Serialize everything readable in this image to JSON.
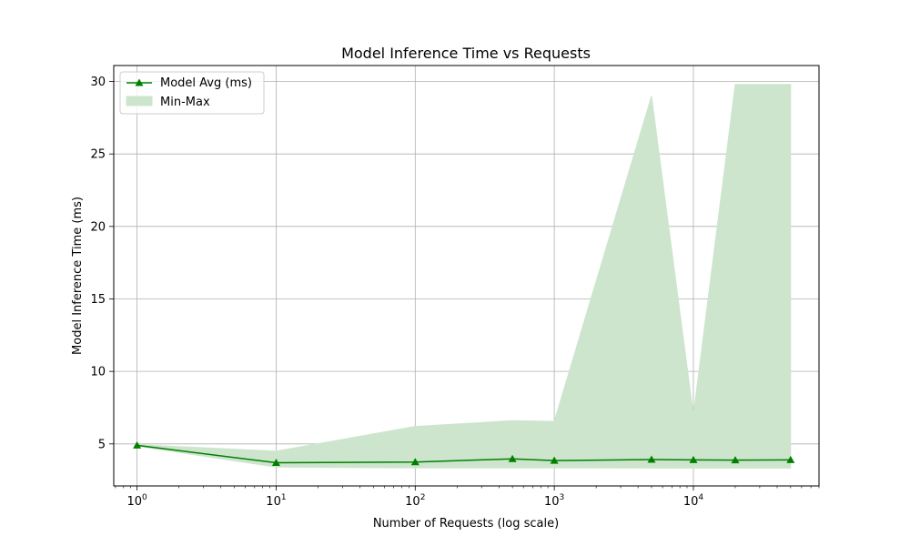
{
  "chart_data": {
    "type": "line",
    "title": "Model Inference Time vs Requests",
    "xlabel": "Number of Requests (log scale)",
    "ylabel": "Model Inference Time (ms)",
    "x_scale": "log",
    "xlim": [
      0.68,
      80000
    ],
    "ylim": [
      2.1,
      31.1
    ],
    "grid": true,
    "legend_position": "upper-left",
    "x_ticks": [
      {
        "value": 1,
        "base": "10",
        "exp": "0"
      },
      {
        "value": 10,
        "base": "10",
        "exp": "1"
      },
      {
        "value": 100,
        "base": "10",
        "exp": "2"
      },
      {
        "value": 1000,
        "base": "10",
        "exp": "3"
      },
      {
        "value": 10000,
        "base": "10",
        "exp": "4"
      }
    ],
    "y_ticks": [
      5,
      10,
      15,
      20,
      25,
      30
    ],
    "x": [
      1,
      10,
      100,
      500,
      1000,
      5000,
      10000,
      20000,
      50000
    ],
    "series": [
      {
        "name": "Model Avg (ms)",
        "kind": "line",
        "color": "#008000",
        "marker": "triangle-up",
        "values": [
          4.9,
          3.7,
          3.75,
          3.97,
          3.85,
          3.92,
          3.9,
          3.88,
          3.9
        ]
      },
      {
        "name": "Min-Max",
        "kind": "band",
        "color": "#008000",
        "fill_color": "#cde5cd",
        "min": [
          4.85,
          3.4,
          3.35,
          3.35,
          3.35,
          3.33,
          3.33,
          3.33,
          3.33
        ],
        "max": [
          4.95,
          4.5,
          6.2,
          6.6,
          6.55,
          29.0,
          7.0,
          29.8,
          29.8
        ]
      }
    ]
  }
}
